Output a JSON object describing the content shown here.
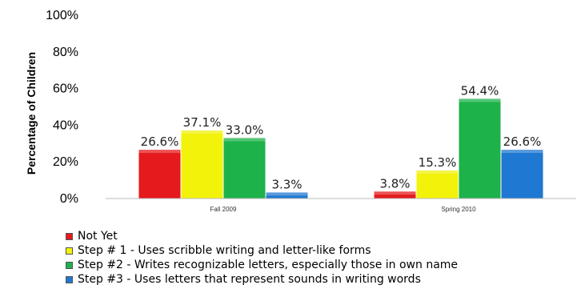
{
  "chart_data": {
    "type": "bar",
    "categories": [
      "Fall 2009",
      "Spring 2010"
    ],
    "series": [
      {
        "name": "Not Yet",
        "color": "#e41a1c",
        "values": [
          26.6,
          3.8
        ]
      },
      {
        "name": "Step # 1 - Uses scribble writing and letter-like forms",
        "color": "#f2f20a",
        "values": [
          37.1,
          15.3
        ]
      },
      {
        "name": "Step #2 - Writes recognizable letters, especially those in own name",
        "color": "#1db24a",
        "values": [
          33.0,
          54.4
        ]
      },
      {
        "name": "Step #3 - Uses letters that represent sounds in writing words",
        "color": "#1f78d1",
        "values": [
          3.3,
          26.6
        ]
      }
    ],
    "data_labels": [
      [
        "26.6%",
        "3.8%"
      ],
      [
        "37.1%",
        "15.3%"
      ],
      [
        "33.0%",
        "54.4%"
      ],
      [
        "3.3%",
        "26.6%"
      ]
    ],
    "ylabel": "Percentage of Children",
    "ylim": [
      0,
      100
    ],
    "yticks": [
      "0%",
      "20%",
      "40%",
      "60%",
      "80%",
      "100%"
    ],
    "legend_position": "bottom"
  }
}
